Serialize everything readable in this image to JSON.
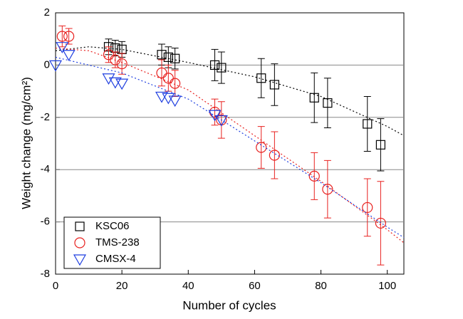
{
  "chart_data": {
    "type": "scatter",
    "x_label": "Number of cycles",
    "y_label": "Weight change (mg/cm²)",
    "xlim": [
      0,
      105
    ],
    "xticks": [
      0,
      20,
      40,
      60,
      80,
      100
    ],
    "ylim": [
      -8,
      2
    ],
    "yticks": [
      -8,
      -6,
      -4,
      -2,
      0,
      2
    ],
    "grid": true,
    "legend": "lower left",
    "series": [
      {
        "name": "KSC06",
        "color": "#000000",
        "marker": "square",
        "x": [
          16,
          18,
          20,
          32,
          34,
          36,
          48,
          50,
          62,
          66,
          78,
          82,
          94,
          98
        ],
        "values": [
          0.7,
          0.65,
          0.6,
          0.4,
          0.3,
          0.25,
          0,
          -0.1,
          -0.5,
          -0.75,
          -1.25,
          -1.45,
          -2.25,
          -3.05
        ],
        "errors": [
          0.3,
          0.3,
          0.3,
          0.4,
          0.4,
          0.4,
          0.6,
          0.6,
          0.75,
          0.8,
          0.95,
          0.95,
          1.05,
          1.0
        ],
        "fit": {
          "x": [
            0,
            10,
            20,
            40,
            60,
            80,
            100,
            105
          ],
          "values": [
            0.55,
            0.7,
            0.6,
            0.1,
            -0.45,
            -1.2,
            -2.35,
            -2.7
          ]
        }
      },
      {
        "name": "TMS-238",
        "color": "#e8211f",
        "marker": "circle",
        "x": [
          2,
          4,
          16,
          18,
          20,
          32,
          34,
          36,
          48,
          50,
          62,
          66,
          78,
          82,
          94,
          98
        ],
        "values": [
          1.1,
          1.1,
          0.4,
          0.2,
          0.05,
          -0.3,
          -0.5,
          -0.7,
          -1.8,
          -2.1,
          -3.15,
          -3.45,
          -4.25,
          -4.75,
          -5.45,
          -6.05
        ],
        "errors": [
          0.4,
          0.3,
          0.3,
          0.3,
          0.4,
          0.5,
          0.5,
          0.5,
          0.5,
          0.7,
          0.8,
          0.9,
          0.9,
          1.1,
          1.1,
          1.6
        ],
        "fit": {
          "x": [
            0,
            10,
            20,
            40,
            60,
            80,
            100,
            105
          ],
          "values": [
            0.65,
            0.55,
            0.1,
            -0.95,
            -2.7,
            -4.45,
            -6.3,
            -6.8
          ]
        }
      },
      {
        "name": "CMSX-4",
        "color": "#1f3fe0",
        "marker": "triangle-down",
        "x": [
          0,
          2,
          4,
          16,
          18,
          20,
          32,
          34,
          36,
          48,
          50
        ],
        "values": [
          0,
          0.7,
          0.4,
          -0.5,
          -0.65,
          -0.7,
          -1.2,
          -1.25,
          -1.35,
          -1.9,
          -2.1
        ],
        "fit": {
          "x": [
            0,
            20,
            40,
            60,
            80,
            100,
            105
          ],
          "values": [
            0.3,
            -0.3,
            -1.3,
            -2.9,
            -4.5,
            -6.2,
            -6.6
          ]
        }
      }
    ]
  }
}
